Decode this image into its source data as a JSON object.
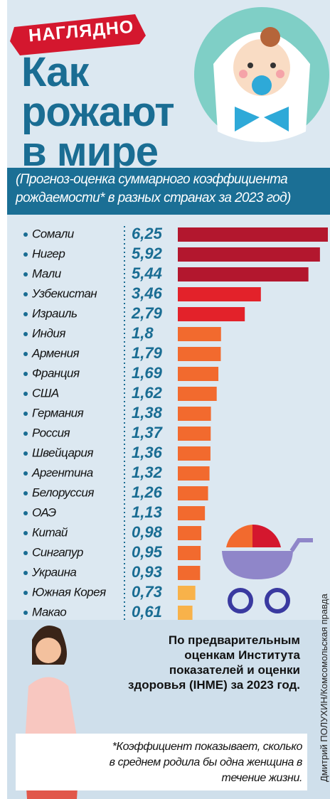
{
  "chart_data": {
    "type": "bar",
    "orientation": "horizontal",
    "badge": "НАГЛЯДНО",
    "title": "Как рожают в мире",
    "subtitle": "(Прогноз-оценка суммарного коэффициента рождаемости* в разных странах за 2023 год)",
    "categories": [
      "Сомали",
      "Нигер",
      "Мали",
      "Узбекистан",
      "Израиль",
      "Индия",
      "Армения",
      "Франция",
      "США",
      "Германия",
      "Россия",
      "Швейцария",
      "Аргентина",
      "Белоруссия",
      "ОАЭ",
      "Китай",
      "Сингапур",
      "Украина",
      "Южная Корея",
      "Макао"
    ],
    "values": [
      6.25,
      5.92,
      5.44,
      3.46,
      2.79,
      1.8,
      1.79,
      1.69,
      1.62,
      1.38,
      1.37,
      1.36,
      1.32,
      1.26,
      1.13,
      0.98,
      0.95,
      0.93,
      0.73,
      0.61
    ],
    "value_labels": [
      "6,25",
      "5,92",
      "5,44",
      "3,46",
      "2,79",
      "1,8",
      "1,79",
      "1,69",
      "1,62",
      "1,38",
      "1,37",
      "1,36",
      "1,32",
      "1,26",
      "1,13",
      "0,98",
      "0,95",
      "0,93",
      "0,73",
      "0,61"
    ],
    "colors": [
      "#b3172e",
      "#b3172e",
      "#b3172e",
      "#e3222a",
      "#e3222a",
      "#f26a2e",
      "#f26a2e",
      "#f26a2e",
      "#f26a2e",
      "#f26a2e",
      "#f26a2e",
      "#f26a2e",
      "#f26a2e",
      "#f26a2e",
      "#f26a2e",
      "#f26a2e",
      "#f26a2e",
      "#f26a2e",
      "#f8b24a",
      "#f8b24a"
    ],
    "source_note": "По предварительным оценкам Института показателей и оценки здоровья (IHME) за 2023 год.",
    "footnote": "*Коэффициент показывает, сколько в среднем родила бы одна женщина в течение жизни.",
    "credit": "Дмитрий ПОЛУХИН/Комсомольская правда"
  }
}
